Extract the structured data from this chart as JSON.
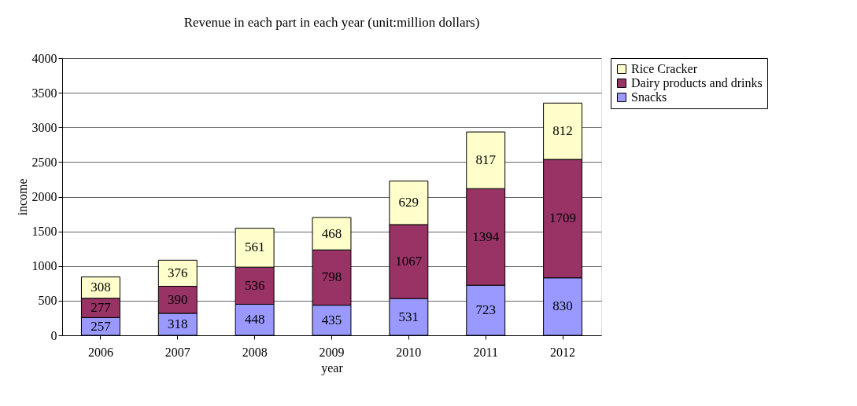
{
  "chart_data": {
    "type": "bar",
    "title": "Revenue in each part in each year (unit:million dollars)",
    "xlabel": "year",
    "ylabel": "income",
    "categories": [
      "2006",
      "2007",
      "2008",
      "2009",
      "2010",
      "2011",
      "2012"
    ],
    "series": [
      {
        "name": "Snacks",
        "color": "#9999ff",
        "values": [
          257,
          318,
          448,
          435,
          531,
          723,
          830
        ]
      },
      {
        "name": "Dairy products and drinks",
        "color": "#993366",
        "values": [
          277,
          390,
          536,
          798,
          1067,
          1394,
          1709
        ]
      },
      {
        "name": "Rice Cracker",
        "color": "#ffffcc",
        "values": [
          308,
          376,
          561,
          468,
          629,
          817,
          812
        ]
      }
    ],
    "stacked": true,
    "data_labels": true,
    "ylim": [
      0,
      4000
    ],
    "yticks": [
      0,
      500,
      1000,
      1500,
      2000,
      2500,
      3000,
      3500,
      4000
    ],
    "grid": "y",
    "legend": "right"
  }
}
